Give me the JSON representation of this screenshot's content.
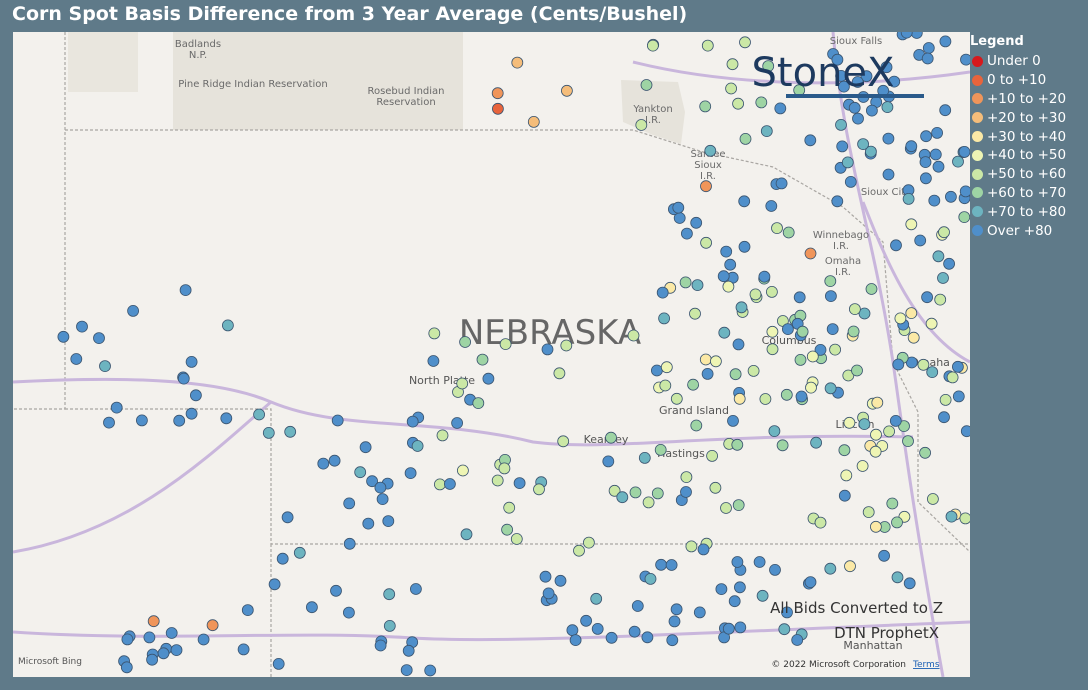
{
  "header": {
    "title": "Corn Spot Basis Difference from 3 Year Average (Cents/Bushel)"
  },
  "logo": "StoneX",
  "legend": {
    "title": "Legend",
    "items": [
      {
        "label": "Under 0",
        "color": "#d7191c"
      },
      {
        "label": "0 to +10",
        "color": "#e8643c"
      },
      {
        "label": "+10 to +20",
        "color": "#f0955a"
      },
      {
        "label": "+20 to +30",
        "color": "#f5bd7a"
      },
      {
        "label": "+30 to +40",
        "color": "#fbe9a6"
      },
      {
        "label": "+40 to +50",
        "color": "#eef5b4"
      },
      {
        "label": "+50 to +60",
        "color": "#cbe8a6"
      },
      {
        "label": "+60 to +70",
        "color": "#9ed4a4"
      },
      {
        "label": "+70 to +80",
        "color": "#6db4c0"
      },
      {
        "label": "Over +80",
        "color": "#4f8fca"
      }
    ]
  },
  "map_labels": {
    "badlands": "Badlands\nN.P.",
    "pine_ridge": "Pine Ridge Indian Reservation",
    "rosebud": "Rosebud Indian\nReservation",
    "yankton": "Yankton\nI.R.",
    "santee": "Santee\nSioux\nI.R.",
    "sioux_city": "Sioux City",
    "winnebago": "Winnebago\nI.R.",
    "omaha_ir": "Omaha\nI.R.",
    "state": "NEBRASKA",
    "north_platte": "North Platte",
    "grand_island": "Grand Island",
    "kearney": "Kearney",
    "hastings": "Hastings",
    "columbus": "Columbus",
    "omaha": "Omaha",
    "lincoln": "Lincoln",
    "manhattan": "Manhattan",
    "sioux_falls": "Sioux Falls"
  },
  "notes": {
    "converted": "All Bids Converted to Z",
    "source": "DTN ProphetX"
  },
  "attribution": {
    "bing": "Microsoft Bing",
    "copyright": "© 2022 Microsoft Corporation",
    "terms": "Terms"
  }
}
